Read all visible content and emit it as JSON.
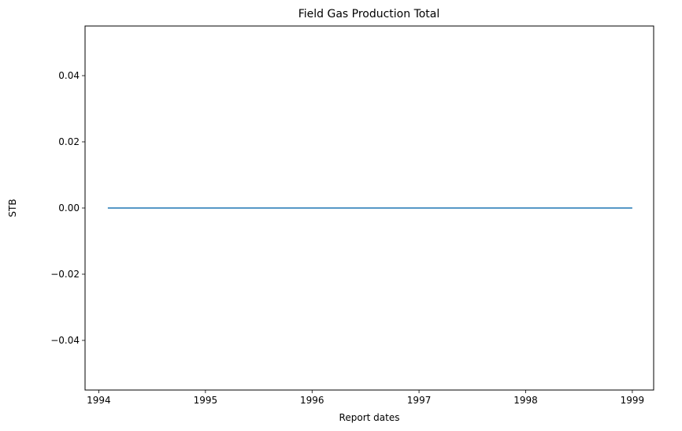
{
  "chart_data": {
    "type": "line",
    "title": "Field Gas Production Total",
    "xlabel": "Report dates",
    "ylabel": "STB",
    "x_ticks": [
      "1994",
      "1995",
      "1996",
      "1997",
      "1998",
      "1999"
    ],
    "y_ticks": [
      "−0.04",
      "−0.02",
      "0.00",
      "0.02",
      "0.04"
    ],
    "xlim": [
      "1993-11-15",
      "1999-03-15"
    ],
    "ylim": [
      -0.055,
      0.055
    ],
    "series": [
      {
        "x": [
          "1994-02-01",
          "1999-01-01"
        ],
        "y": [
          0,
          0
        ],
        "color": "#1f77b4"
      }
    ],
    "grid": false
  }
}
